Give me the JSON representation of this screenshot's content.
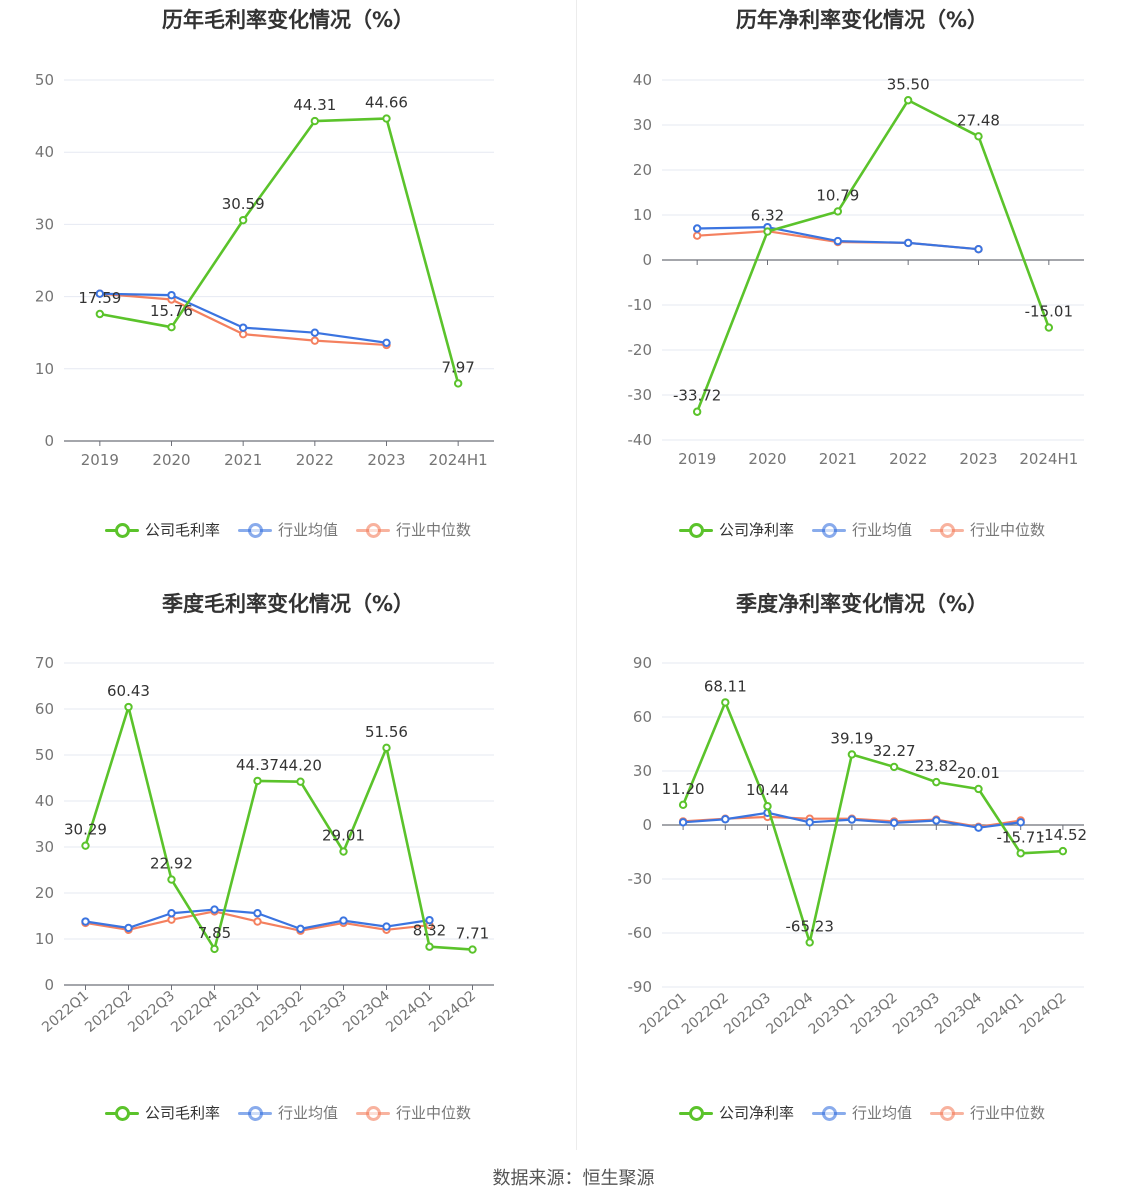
{
  "source_text": "数据来源：恒生聚源",
  "colors": {
    "company": "#5bc32b",
    "industry_avg": "#3b74e0",
    "industry_median": "#f4805f",
    "grid": "#e6e9f2",
    "axis": "#6e7079",
    "tick_text": "#757575"
  },
  "legend_icons": [
    "line-circle-marker-icon",
    "line-circle-marker-icon",
    "line-circle-marker-icon"
  ],
  "chart_data": [
    {
      "type": "line",
      "title": "历年毛利率变化情况（%）",
      "categories": [
        "2019",
        "2020",
        "2021",
        "2022",
        "2023",
        "2024H1"
      ],
      "ylim": [
        0,
        50
      ],
      "yticks": [
        0,
        10,
        20,
        30,
        40,
        50
      ],
      "x_label_rotate": false,
      "grid": true,
      "legend_position": "bottom",
      "series": [
        {
          "name": "公司毛利率",
          "color_key": "company",
          "values": [
            17.59,
            15.76,
            30.59,
            44.31,
            44.66,
            7.97
          ],
          "labels": true
        },
        {
          "name": "行业均值",
          "color_key": "industry_avg",
          "values": [
            20.4,
            20.2,
            15.7,
            15.0,
            13.6,
            null
          ],
          "labels": false
        },
        {
          "name": "行业中位数",
          "color_key": "industry_median",
          "values": [
            20.4,
            19.6,
            14.8,
            13.9,
            13.3,
            null
          ],
          "labels": false
        }
      ]
    },
    {
      "type": "line",
      "title": "历年净利率变化情况（%）",
      "categories": [
        "2019",
        "2020",
        "2021",
        "2022",
        "2023",
        "2024H1"
      ],
      "ylim": [
        -40,
        40
      ],
      "yticks": [
        -40,
        -30,
        -20,
        -10,
        0,
        10,
        20,
        30,
        40
      ],
      "x_label_rotate": false,
      "grid": true,
      "legend_position": "bottom",
      "series": [
        {
          "name": "公司净利率",
          "color_key": "company",
          "values": [
            -33.72,
            6.32,
            10.79,
            35.5,
            27.48,
            -15.01
          ],
          "labels": true
        },
        {
          "name": "行业均值",
          "color_key": "industry_avg",
          "values": [
            7.0,
            7.3,
            4.2,
            3.8,
            2.4,
            null
          ],
          "labels": false
        },
        {
          "name": "行业中位数",
          "color_key": "industry_median",
          "values": [
            5.4,
            6.4,
            4.0,
            3.8,
            2.4,
            null
          ],
          "labels": false
        }
      ]
    },
    {
      "type": "line",
      "title": "季度毛利率变化情况（%）",
      "categories": [
        "2022Q1",
        "2022Q2",
        "2022Q3",
        "2022Q4",
        "2023Q1",
        "2023Q2",
        "2023Q3",
        "2023Q4",
        "2024Q1",
        "2024Q2"
      ],
      "ylim": [
        0,
        70
      ],
      "yticks": [
        0,
        10,
        20,
        30,
        40,
        50,
        60,
        70
      ],
      "x_label_rotate": true,
      "grid": true,
      "legend_position": "bottom",
      "series": [
        {
          "name": "公司毛利率",
          "color_key": "company",
          "values": [
            30.29,
            60.43,
            22.92,
            7.85,
            44.37,
            44.2,
            29.01,
            51.56,
            8.32,
            7.71
          ],
          "labels": true
        },
        {
          "name": "行业均值",
          "color_key": "industry_avg",
          "values": [
            13.8,
            12.4,
            15.6,
            16.4,
            15.6,
            12.2,
            14.0,
            12.7,
            14.1,
            null
          ],
          "labels": false
        },
        {
          "name": "行业中位数",
          "color_key": "industry_median",
          "values": [
            13.5,
            12.0,
            14.2,
            16.0,
            13.8,
            11.8,
            13.5,
            12.0,
            13.0,
            null
          ],
          "labels": false
        }
      ]
    },
    {
      "type": "line",
      "title": "季度净利率变化情况（%）",
      "categories": [
        "2022Q1",
        "2022Q2",
        "2022Q3",
        "2022Q4",
        "2023Q1",
        "2023Q2",
        "2023Q3",
        "2023Q4",
        "2024Q1",
        "2024Q2"
      ],
      "ylim": [
        -90,
        90
      ],
      "yticks": [
        -90,
        -60,
        -30,
        0,
        30,
        60,
        90
      ],
      "x_label_rotate": true,
      "grid": true,
      "legend_position": "bottom",
      "series": [
        {
          "name": "公司净利率",
          "color_key": "company",
          "values": [
            11.2,
            68.11,
            10.44,
            -65.23,
            39.19,
            32.27,
            23.82,
            20.01,
            -15.71,
            -14.52
          ],
          "labels": true
        },
        {
          "name": "行业均值",
          "color_key": "industry_avg",
          "values": [
            1.5,
            3.2,
            6.8,
            1.5,
            3.0,
            1.2,
            2.5,
            -1.5,
            1.5,
            null
          ],
          "labels": false
        },
        {
          "name": "行业中位数",
          "color_key": "industry_median",
          "values": [
            2.0,
            3.5,
            4.5,
            3.5,
            3.5,
            2.0,
            3.0,
            -1.0,
            2.5,
            null
          ],
          "labels": false
        }
      ]
    }
  ]
}
